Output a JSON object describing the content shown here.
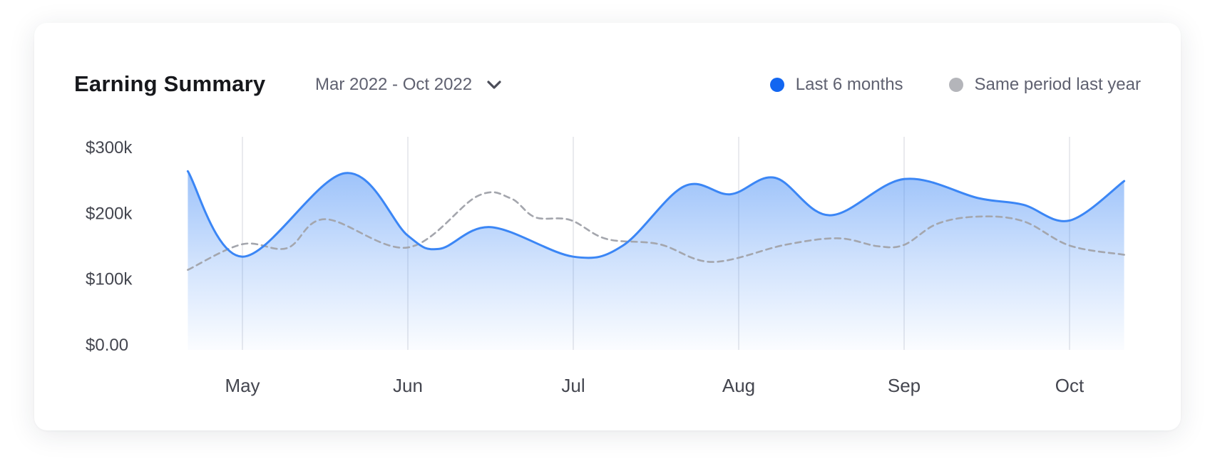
{
  "header": {
    "title": "Earning Summary",
    "date_range": "Mar 2022 - Oct 2022"
  },
  "colors": {
    "primary": "#3b86f5",
    "primary_dot": "#1266f1",
    "secondary": "#a4a6ad",
    "secondary_dot": "#b4b5ba",
    "grid": "#e2e3e8"
  },
  "icons": {
    "dropdown": "chevron-down-icon"
  },
  "chart_data": {
    "type": "area",
    "title": "Earning Summary",
    "xlabel": "",
    "ylabel": "",
    "ylim": [
      0,
      300000
    ],
    "y_ticks": [
      {
        "value": 0,
        "label": "$0.00"
      },
      {
        "value": 100000,
        "label": "$100k"
      },
      {
        "value": 200000,
        "label": "$200k"
      },
      {
        "value": 300000,
        "label": "$300k"
      }
    ],
    "x_ticks": [
      "May",
      "Jun",
      "Jul",
      "Aug",
      "Sep",
      "Oct"
    ],
    "xlim": [
      -0.33,
      5.33
    ],
    "grid": {
      "vertical": true,
      "horizontal": false
    },
    "legend_position": "top-right",
    "series": [
      {
        "name": "Last 6 months",
        "style": "solid-area",
        "x": [
          -0.33,
          0.0,
          0.62,
          1.0,
          1.19,
          1.5,
          2.0,
          2.3,
          2.67,
          2.95,
          3.22,
          3.55,
          4.0,
          4.45,
          4.72,
          5.0,
          5.33
        ],
        "values": [
          263000,
          133000,
          260000,
          165000,
          145000,
          178000,
          133000,
          150000,
          240000,
          228000,
          253000,
          196000,
          251000,
          222000,
          212000,
          188000,
          248000
        ]
      },
      {
        "name": "Same period last year",
        "style": "dashed",
        "x": [
          -0.33,
          0.0,
          0.27,
          0.5,
          1.0,
          1.42,
          1.62,
          1.77,
          1.98,
          2.2,
          2.52,
          2.84,
          3.28,
          3.6,
          3.84,
          4.0,
          4.2,
          4.45,
          4.72,
          5.0,
          5.33
        ],
        "values": [
          113000,
          152000,
          146000,
          190000,
          147000,
          225000,
          222000,
          193000,
          189000,
          160000,
          152000,
          125000,
          151000,
          161000,
          149000,
          151000,
          183000,
          194000,
          187000,
          150000,
          136000
        ]
      }
    ]
  }
}
